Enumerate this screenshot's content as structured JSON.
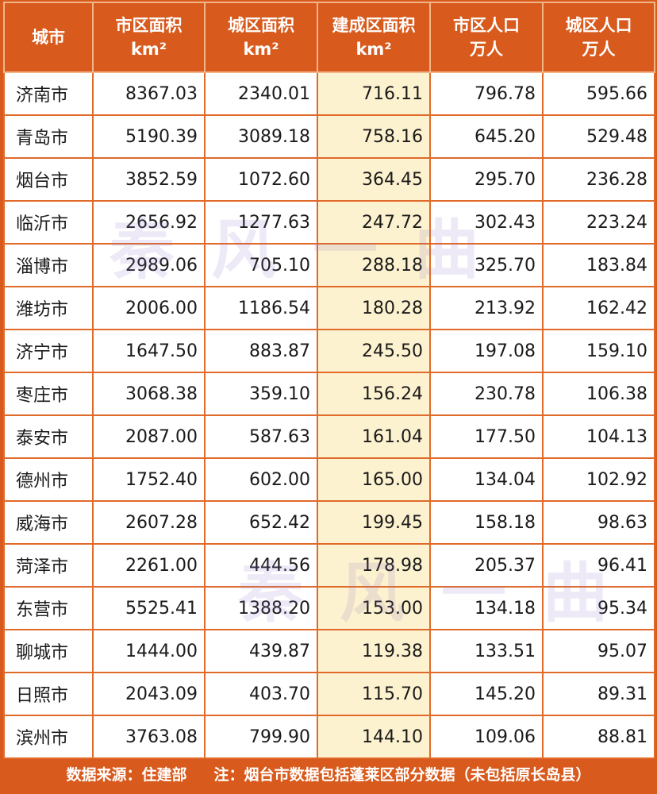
{
  "table": {
    "headers": [
      {
        "title": "城市",
        "unit": ""
      },
      {
        "title": "市区面积",
        "unit": "km²"
      },
      {
        "title": "城区面积",
        "unit": "km²"
      },
      {
        "title": "建成区面积",
        "unit": "km²"
      },
      {
        "title": "市区人口",
        "unit": "万人"
      },
      {
        "title": "城区人口",
        "unit": "万人"
      }
    ],
    "rows": [
      [
        "济南市",
        "8367.03",
        "2340.01",
        "716.11",
        "796.78",
        "595.66"
      ],
      [
        "青岛市",
        "5190.39",
        "3089.18",
        "758.16",
        "645.20",
        "529.48"
      ],
      [
        "烟台市",
        "3852.59",
        "1072.60",
        "364.45",
        "295.70",
        "236.28"
      ],
      [
        "临沂市",
        "2656.92",
        "1277.63",
        "247.72",
        "302.43",
        "223.24"
      ],
      [
        "淄博市",
        "2989.06",
        "705.10",
        "288.18",
        "325.70",
        "183.84"
      ],
      [
        "潍坊市",
        "2006.00",
        "1186.54",
        "180.28",
        "213.92",
        "162.42"
      ],
      [
        "济宁市",
        "1647.50",
        "883.87",
        "245.50",
        "197.08",
        "159.10"
      ],
      [
        "枣庄市",
        "3068.38",
        "359.10",
        "156.24",
        "230.78",
        "106.38"
      ],
      [
        "泰安市",
        "2087.00",
        "587.63",
        "161.04",
        "177.50",
        "104.13"
      ],
      [
        "德州市",
        "1752.40",
        "602.00",
        "165.00",
        "134.04",
        "102.92"
      ],
      [
        "威海市",
        "2607.28",
        "652.42",
        "199.45",
        "158.18",
        "98.63"
      ],
      [
        "菏泽市",
        "2261.00",
        "444.56",
        "178.98",
        "205.37",
        "96.41"
      ],
      [
        "东营市",
        "5525.41",
        "1388.20",
        "153.00",
        "134.18",
        "95.34"
      ],
      [
        "聊城市",
        "1444.00",
        "439.87",
        "119.38",
        "133.51",
        "95.07"
      ],
      [
        "日照市",
        "2043.09",
        "403.70",
        "115.70",
        "145.20",
        "89.31"
      ],
      [
        "滨州市",
        "3763.08",
        "799.90",
        "144.10",
        "109.06",
        "88.81"
      ]
    ]
  },
  "footer": {
    "source": "数据来源：住建部",
    "note": "注：烟台市数据包括蓬莱区部分数据（未包括原长岛县）"
  },
  "watermark": "秦风一曲",
  "colors": {
    "header_bg": "#d85a1d",
    "built_area_bg": "#fdf2cf",
    "border": "#e06a2a"
  }
}
